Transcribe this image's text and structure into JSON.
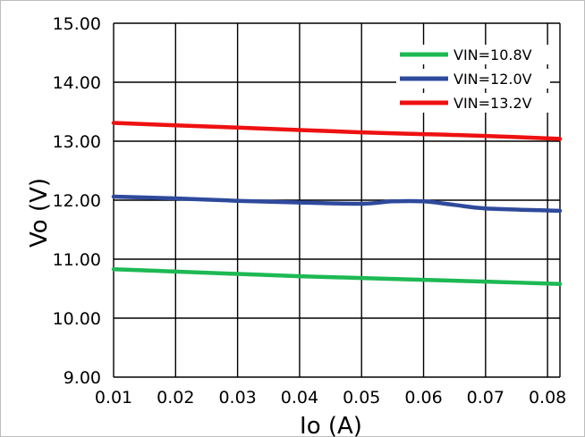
{
  "chart_data": {
    "type": "line",
    "title": "",
    "xlabel": "Io (A)",
    "ylabel": "Vo (V)",
    "xlim": [
      0.01,
      0.082
    ],
    "ylim": [
      9.0,
      15.0
    ],
    "x_ticks": [
      "0.01",
      "0.02",
      "0.03",
      "0.04",
      "0.05",
      "0.06",
      "0.07",
      "0.08"
    ],
    "y_ticks": [
      "9.00",
      "10.00",
      "11.00",
      "12.00",
      "13.00",
      "14.00",
      "15.00"
    ],
    "grid": true,
    "legend_position": "top-right",
    "series": [
      {
        "name": "VIN=10.8V",
        "color": "#1db954",
        "x": [
          0.01,
          0.02,
          0.03,
          0.04,
          0.05,
          0.06,
          0.07,
          0.082
        ],
        "y": [
          10.83,
          10.79,
          10.75,
          10.71,
          10.68,
          10.65,
          10.62,
          10.58
        ]
      },
      {
        "name": "VIN=12.0V",
        "color": "#2f4a9c",
        "x": [
          0.01,
          0.02,
          0.03,
          0.04,
          0.05,
          0.055,
          0.06,
          0.065,
          0.07,
          0.082
        ],
        "y": [
          12.06,
          12.03,
          11.99,
          11.96,
          11.94,
          11.98,
          11.98,
          11.92,
          11.86,
          11.82
        ]
      },
      {
        "name": "VIN=13.2V",
        "color": "#ee1111",
        "x": [
          0.01,
          0.02,
          0.03,
          0.04,
          0.05,
          0.06,
          0.07,
          0.082
        ],
        "y": [
          13.31,
          13.27,
          13.23,
          13.19,
          13.15,
          13.12,
          13.09,
          13.04
        ]
      }
    ]
  }
}
